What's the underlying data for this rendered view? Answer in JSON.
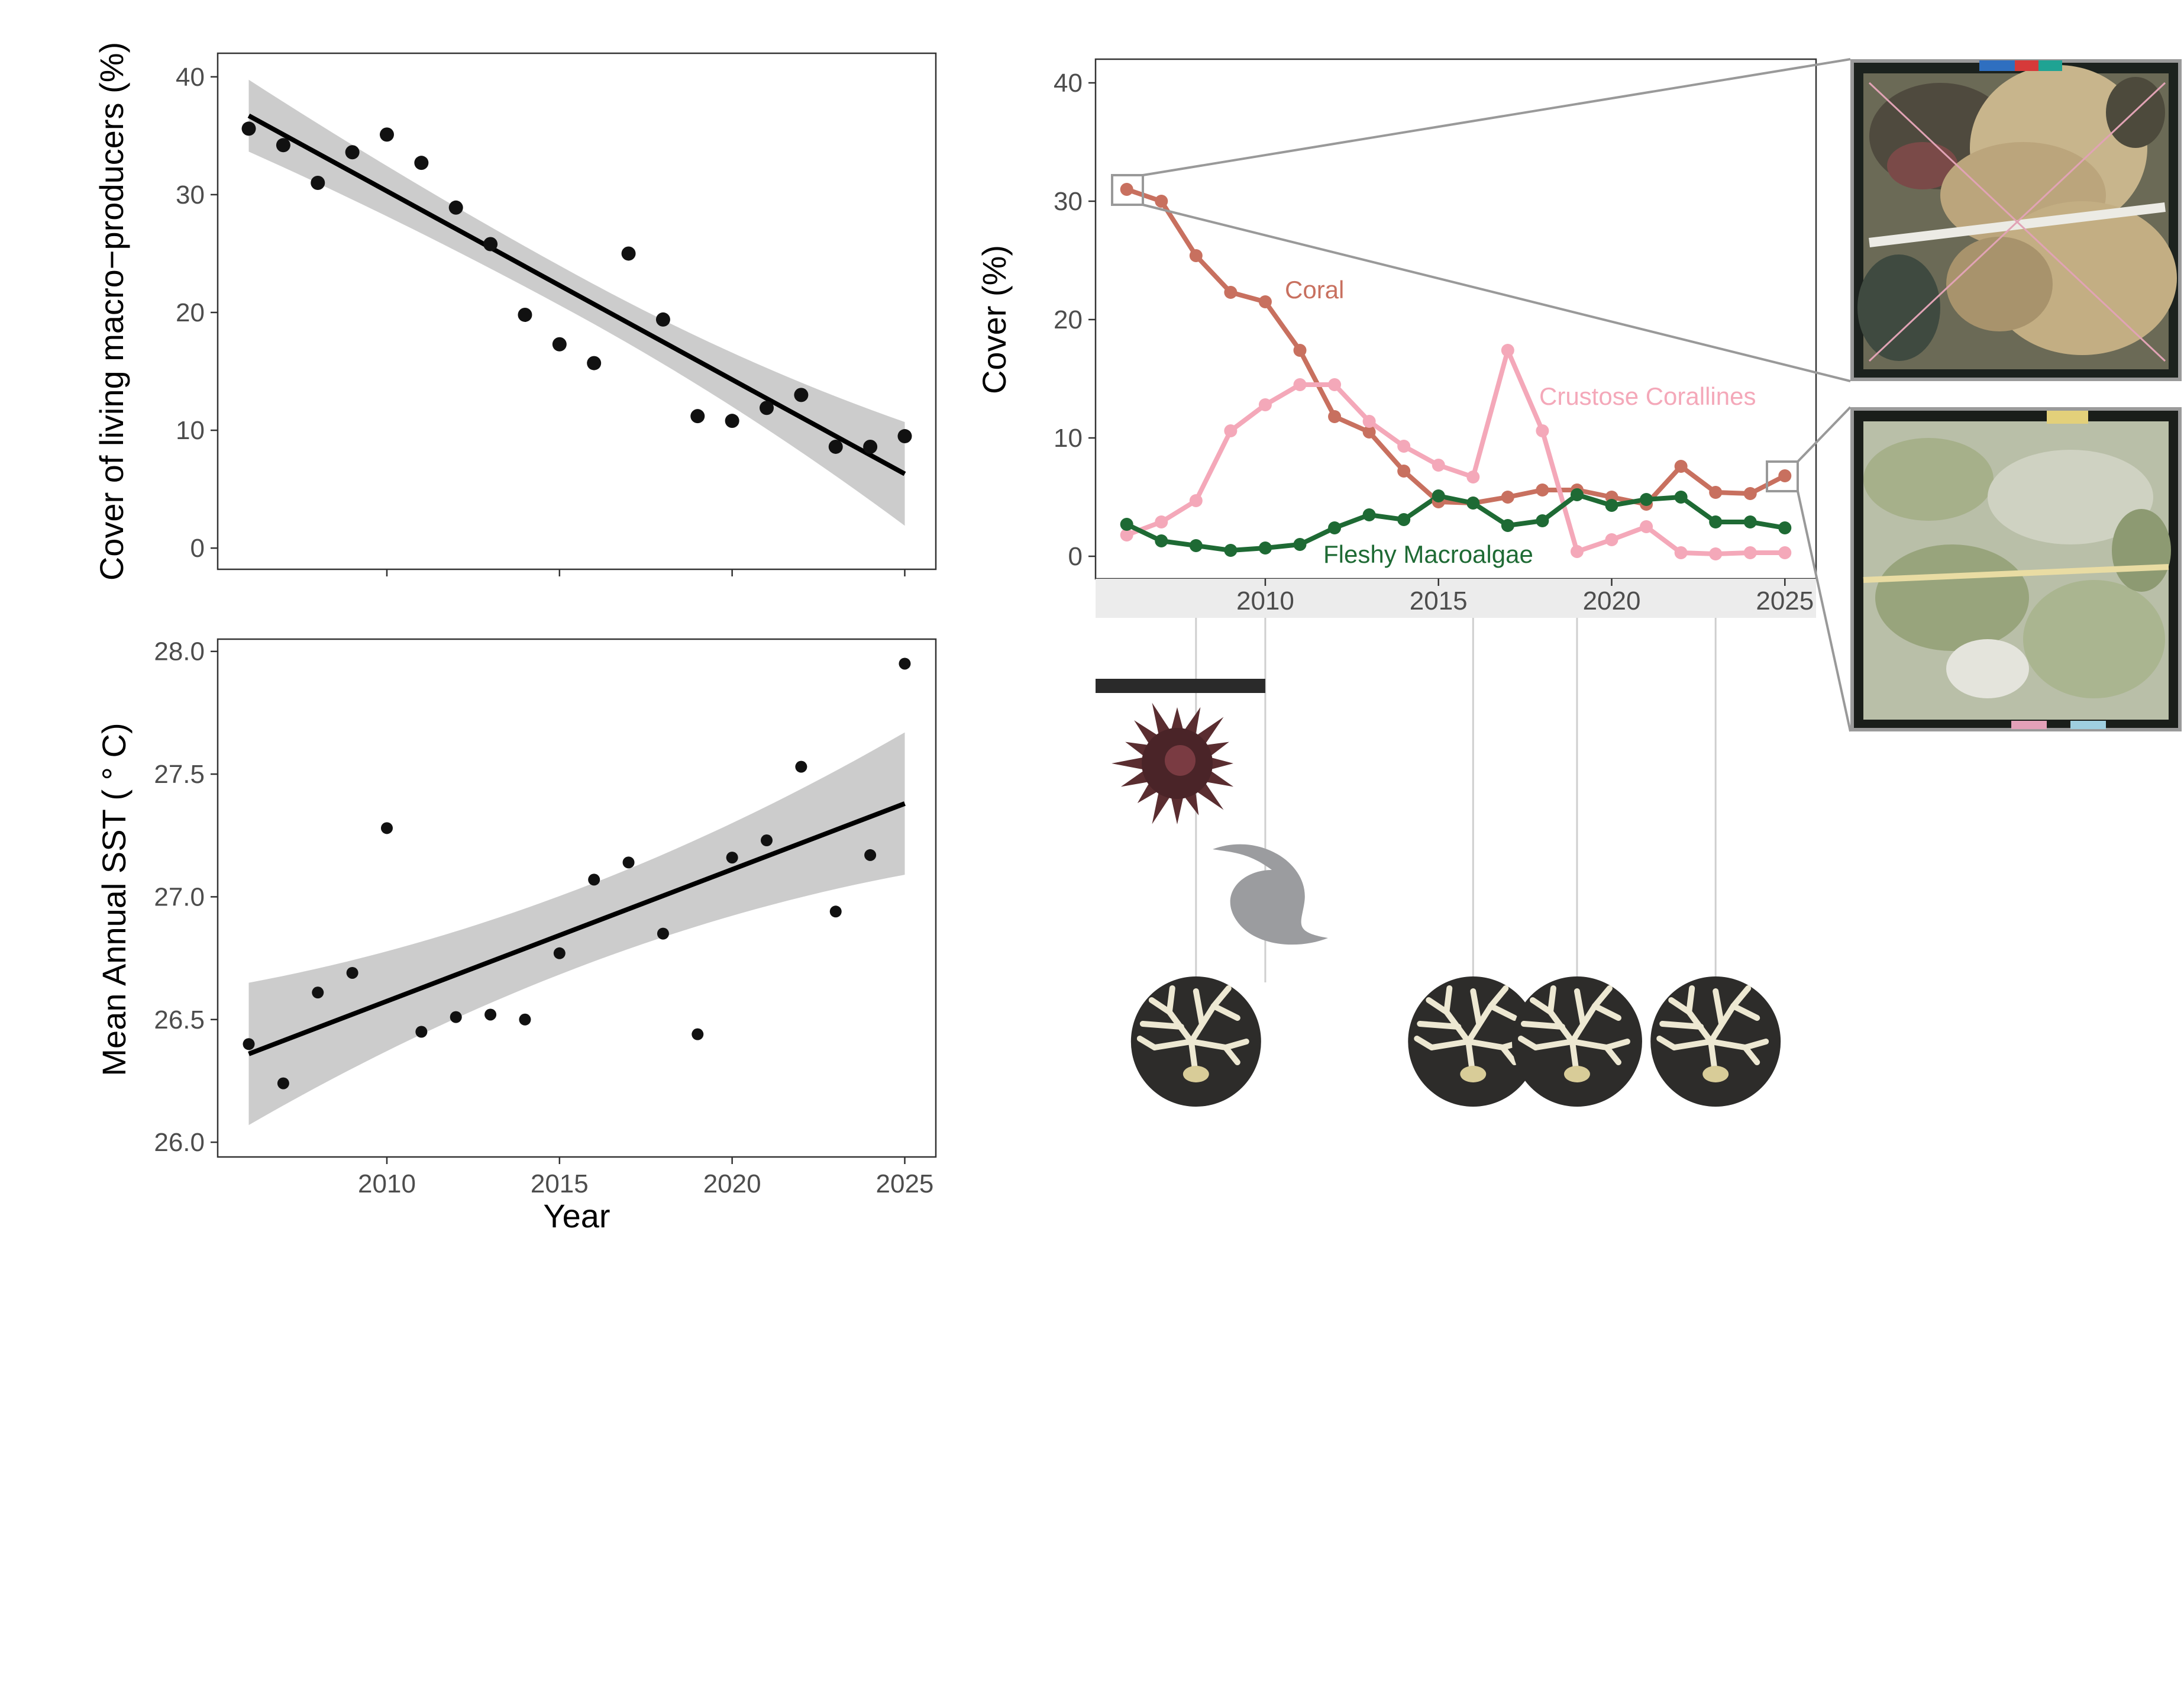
{
  "chart_data": [
    {
      "type": "scatter",
      "ylabel": "Cover of living macro−producers (%)",
      "xlim": [
        2005.1,
        2025.9
      ],
      "ylim": [
        -1.8,
        42.0
      ],
      "yticks": [
        0,
        10,
        20,
        30,
        40
      ],
      "xticks": [
        2010,
        2015,
        2020,
        2025
      ],
      "grid": false,
      "x": [
        2006,
        2007,
        2008,
        2009,
        2010,
        2011,
        2012,
        2013,
        2014,
        2015,
        2016,
        2017,
        2018,
        2019,
        2020,
        2021,
        2022,
        2023,
        2024,
        2025
      ],
      "values": [
        35.6,
        34.2,
        31.0,
        33.6,
        35.1,
        32.7,
        28.9,
        25.8,
        19.8,
        17.3,
        15.7,
        25.0,
        19.4,
        11.2,
        10.8,
        11.9,
        13.0,
        8.6,
        8.6,
        9.5
      ],
      "trend": {
        "start": [
          2006,
          36.7
        ],
        "end": [
          2025,
          6.3
        ]
      },
      "band": {
        "upper_start": 39.7,
        "upper_end": 10.7,
        "lower_start": 33.6,
        "lower_end": 1.9
      },
      "colors": {
        "points": "#111111",
        "line": "#000000",
        "band": "#cccccc"
      }
    },
    {
      "type": "scatter",
      "ylabel": "Mean Annual SST ( ° C)",
      "xlabel": "Year",
      "xlim": [
        2005.1,
        2025.9
      ],
      "ylim": [
        25.94,
        28.05
      ],
      "yticks": [
        "26.0",
        "26.5",
        "27.0",
        "27.5",
        "28.0"
      ],
      "xticks": [
        2010,
        2015,
        2020,
        2025
      ],
      "grid": false,
      "x": [
        2006,
        2007,
        2008,
        2009,
        2010,
        2011,
        2012,
        2013,
        2014,
        2015,
        2016,
        2017,
        2018,
        2019,
        2020,
        2021,
        2022,
        2023,
        2024,
        2025
      ],
      "values": [
        26.4,
        26.24,
        26.61,
        26.69,
        27.28,
        26.45,
        26.51,
        26.52,
        26.5,
        26.77,
        27.07,
        27.14,
        26.85,
        26.44,
        27.16,
        27.23,
        27.53,
        26.94,
        27.17,
        27.95
      ],
      "trend": {
        "start": [
          2006,
          26.36
        ],
        "end": [
          2025,
          27.38
        ]
      },
      "band": {
        "upper_start": 26.66,
        "upper_end": 27.67,
        "lower_start": 26.08,
        "lower_end": 27.09
      },
      "colors": {
        "points": "#111111",
        "line": "#000000",
        "band": "#cccccc"
      }
    },
    {
      "type": "line",
      "ylabel": "Cover (%)",
      "xlim": [
        2005.1,
        2025.9
      ],
      "ylim": [
        -1.9,
        42.0
      ],
      "yticks": [
        0,
        10,
        20,
        30,
        40
      ],
      "xticks": [
        2010,
        2015,
        2020,
        2025
      ],
      "grid": false,
      "x": [
        2006,
        2007,
        2008,
        2009,
        2010,
        2011,
        2012,
        2013,
        2014,
        2015,
        2016,
        2017,
        2018,
        2019,
        2020,
        2021,
        2022,
        2023,
        2024,
        2025
      ],
      "series": [
        {
          "name": "Coral",
          "color": "#c8705f",
          "values": [
            31.0,
            30.0,
            25.4,
            22.3,
            21.5,
            17.4,
            11.8,
            10.5,
            7.2,
            4.6,
            4.5,
            5.0,
            5.6,
            5.6,
            5.0,
            4.4,
            7.6,
            5.4,
            5.3,
            6.8
          ]
        },
        {
          "name": "Crustose Corallines",
          "color": "#f4a8b9",
          "values": [
            1.8,
            2.9,
            4.7,
            10.6,
            12.8,
            14.5,
            14.5,
            11.4,
            9.3,
            7.7,
            6.7,
            17.4,
            10.6,
            0.4,
            1.4,
            2.5,
            0.3,
            0.2,
            0.3,
            0.3
          ]
        },
        {
          "name": "Fleshy Macroalgae",
          "color": "#1e6a34",
          "values": [
            2.7,
            1.3,
            0.9,
            0.5,
            0.7,
            1.0,
            2.4,
            3.5,
            3.1,
            5.1,
            4.5,
            2.6,
            3.0,
            5.2,
            4.3,
            4.8,
            5.0,
            2.9,
            2.9,
            2.4
          ]
        }
      ]
    }
  ],
  "events": {
    "outbreak_span": [
      2006,
      2010
    ],
    "cyclone_year": 2010,
    "bleaching_years": [
      2008,
      2016,
      2019,
      2023
    ],
    "icons": [
      "starfish-icon",
      "cyclone-icon",
      "bleached-coral-icon"
    ]
  },
  "photos": [
    "reef-photo-2006",
    "reef-photo-2025"
  ]
}
